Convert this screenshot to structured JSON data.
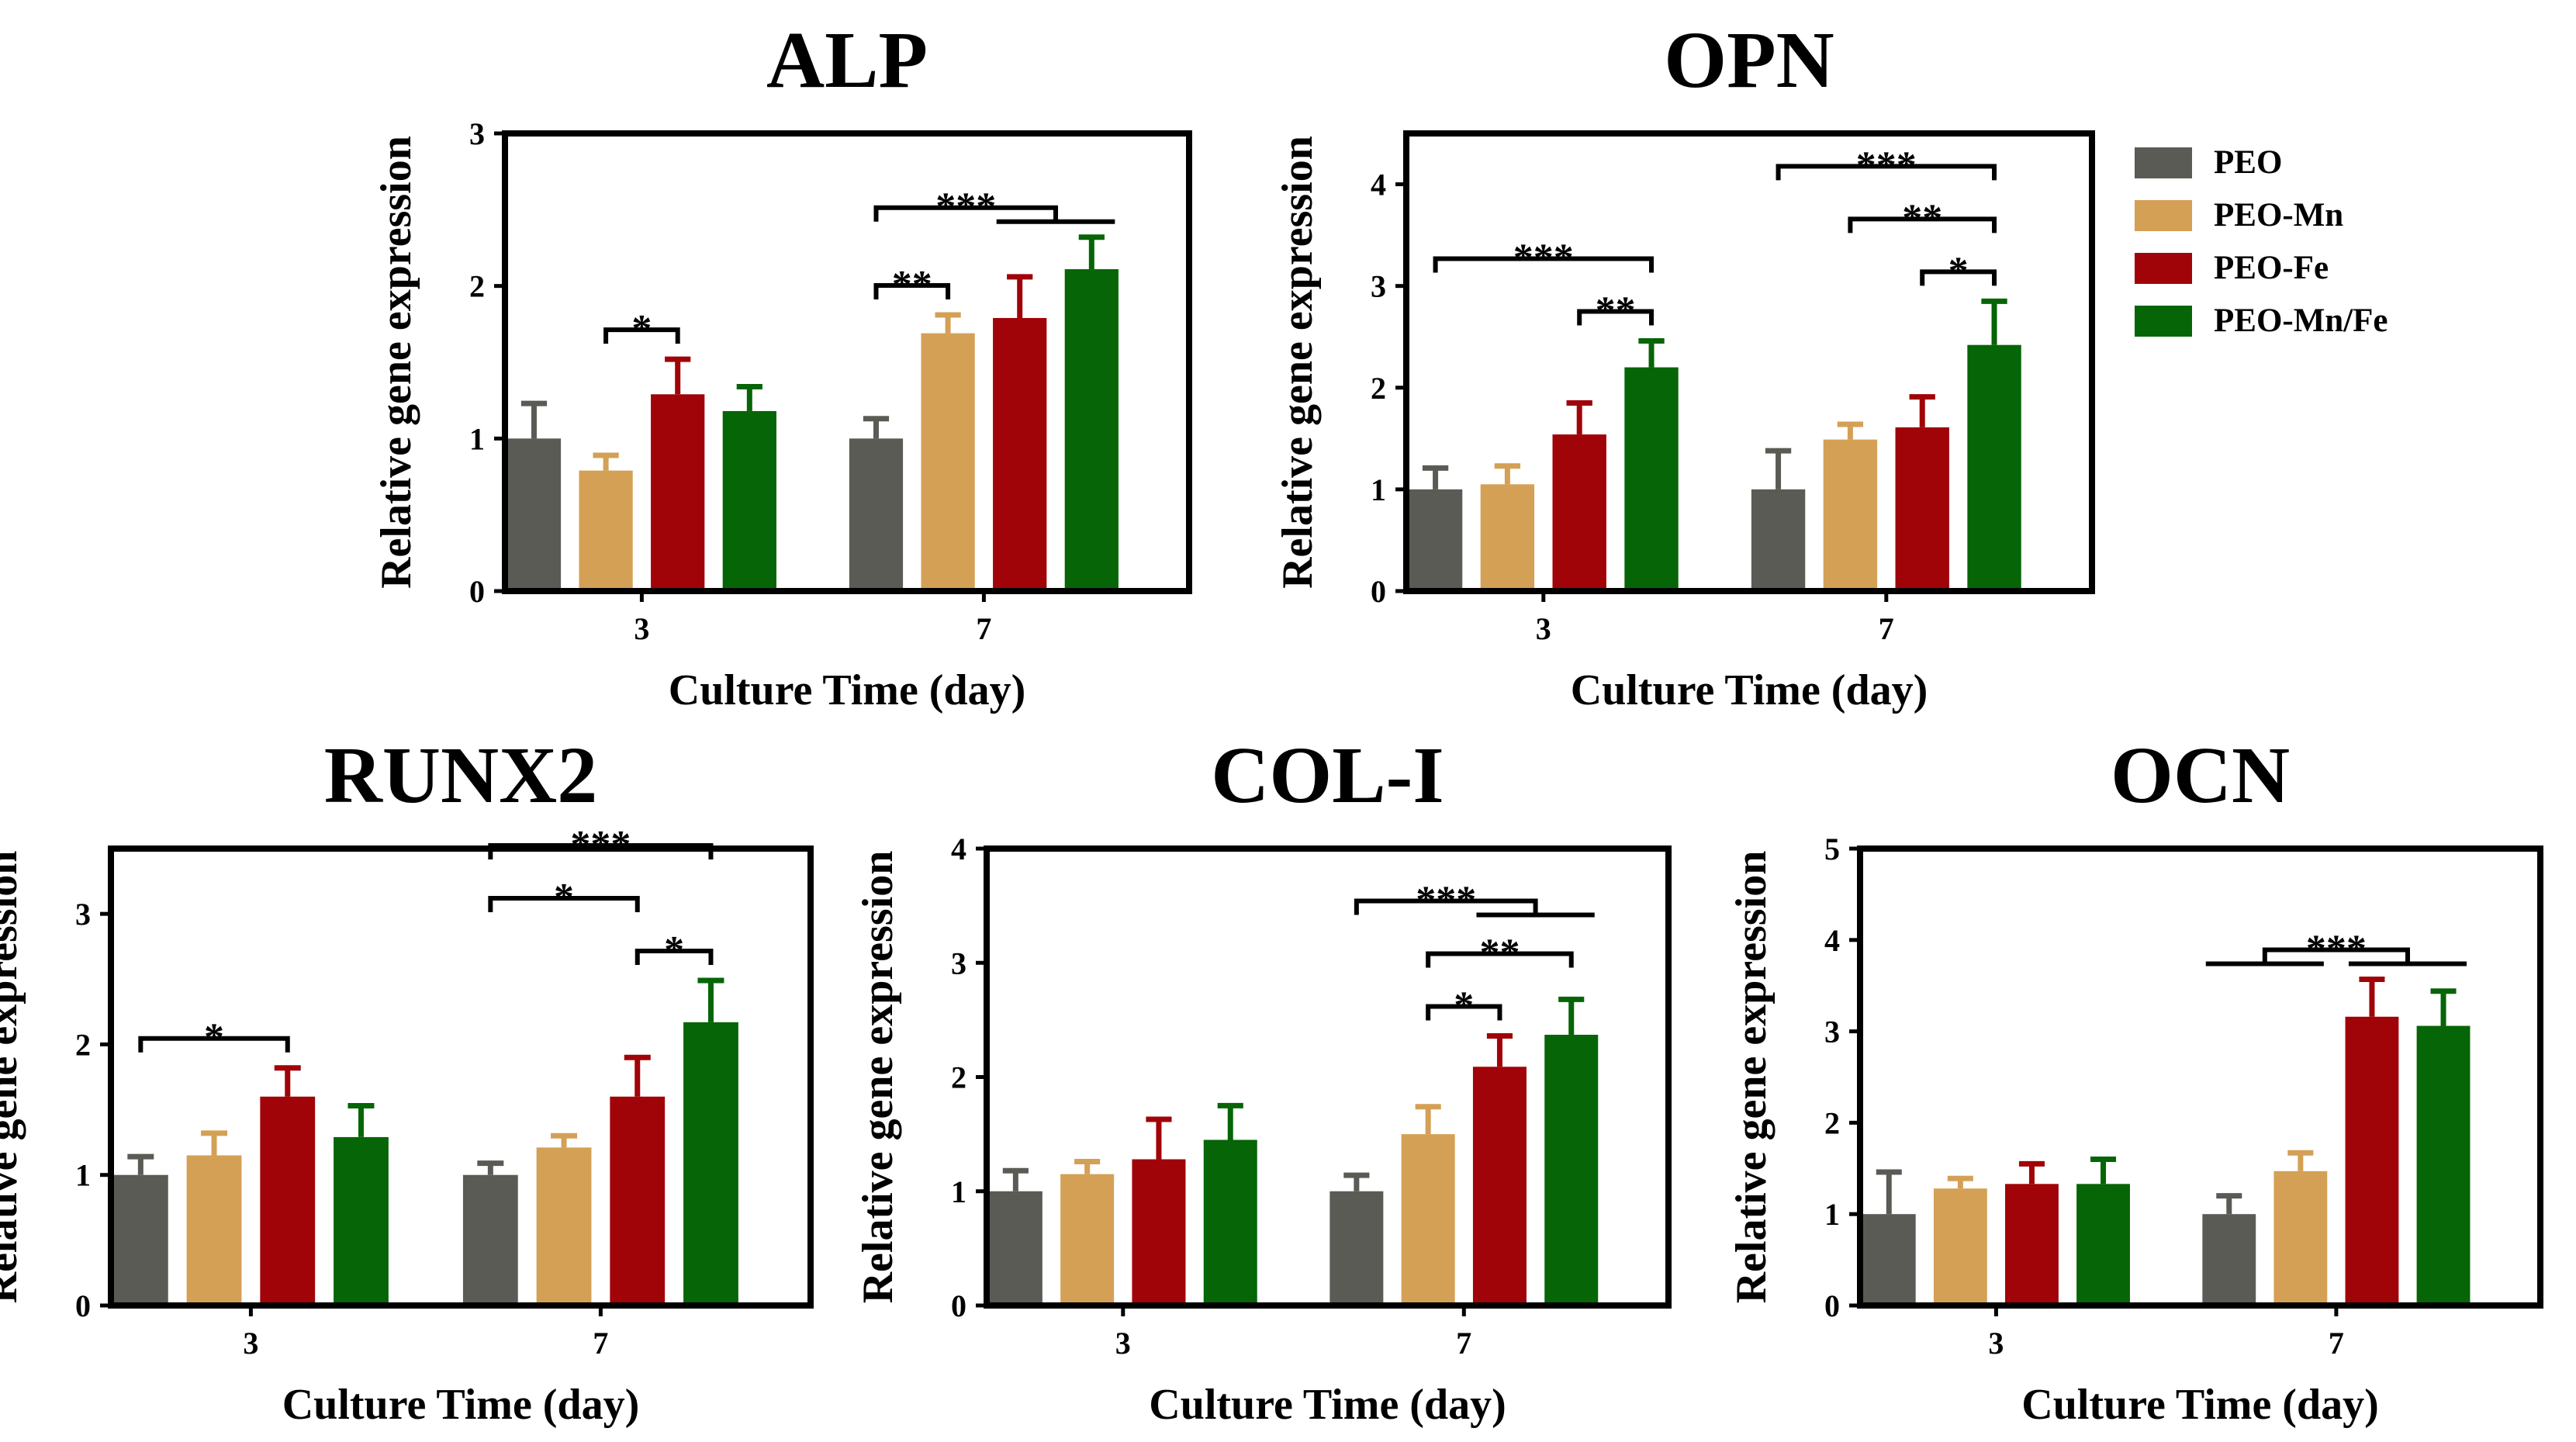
{
  "legend": {
    "items": [
      {
        "label": "PEO",
        "color": "#5a5b55"
      },
      {
        "label": "PEO-Mn",
        "color": "#d4a055"
      },
      {
        "label": "PEO-Fe",
        "color": "#a00308"
      },
      {
        "label": "PEO-Mn/Fe",
        "color": "#066506"
      }
    ]
  },
  "chart_data": [
    {
      "type": "bar",
      "title": "ALP",
      "xlabel": "Culture Time (day)",
      "ylabel": "Relative gene expression",
      "categories": [
        "3",
        "7"
      ],
      "ylim": [
        0,
        3
      ],
      "yticks": [
        0,
        1,
        2,
        3
      ],
      "series": [
        {
          "name": "PEO",
          "values": [
            1.0,
            1.0
          ],
          "errors": [
            0.23,
            0.13
          ]
        },
        {
          "name": "PEO-Mn",
          "values": [
            0.79,
            1.69
          ],
          "errors": [
            0.1,
            0.12
          ]
        },
        {
          "name": "PEO-Fe",
          "values": [
            1.29,
            1.79
          ],
          "errors": [
            0.23,
            0.27
          ]
        },
        {
          "name": "PEO-Mn/Fe",
          "values": [
            1.18,
            2.11
          ],
          "errors": [
            0.16,
            0.21
          ]
        }
      ],
      "significance": [
        {
          "category": "3",
          "from": 1,
          "to": 2,
          "label": "*"
        },
        {
          "category": "7",
          "from": 0,
          "to": 1,
          "label": "**"
        },
        {
          "category": "7",
          "from": 0,
          "to": 2,
          "to_end": 3,
          "label": "***"
        }
      ]
    },
    {
      "type": "bar",
      "title": "OPN",
      "xlabel": "Culture Time (day)",
      "ylabel": "Relative gene expression",
      "categories": [
        "3",
        "7"
      ],
      "ylim": [
        0,
        4.5
      ],
      "yticks": [
        0,
        1,
        2,
        3,
        4
      ],
      "series": [
        {
          "name": "PEO",
          "values": [
            1.0,
            1.0
          ],
          "errors": [
            0.21,
            0.38
          ]
        },
        {
          "name": "PEO-Mn",
          "values": [
            1.05,
            1.49
          ],
          "errors": [
            0.18,
            0.15
          ]
        },
        {
          "name": "PEO-Fe",
          "values": [
            1.54,
            1.61
          ],
          "errors": [
            0.31,
            0.3
          ]
        },
        {
          "name": "PEO-Mn/Fe",
          "values": [
            2.2,
            2.42
          ],
          "errors": [
            0.26,
            0.43
          ]
        }
      ],
      "significance": [
        {
          "category": "3",
          "from": 2,
          "to": 3,
          "label": "**"
        },
        {
          "category": "3",
          "from": 0,
          "to": 3,
          "label": "***"
        },
        {
          "category": "7",
          "from": 2,
          "to": 3,
          "label": "*"
        },
        {
          "category": "7",
          "from": 1,
          "to": 3,
          "label": "**"
        },
        {
          "category": "7",
          "from": 0,
          "to": 3,
          "label": "***"
        }
      ]
    },
    {
      "type": "bar",
      "title": "RUNX2",
      "xlabel": "Culture Time (day)",
      "ylabel": "Relative gene expression",
      "categories": [
        "3",
        "7"
      ],
      "ylim": [
        0,
        3.5
      ],
      "yticks": [
        0,
        1,
        2,
        3
      ],
      "series": [
        {
          "name": "PEO",
          "values": [
            1.0,
            1.0
          ],
          "errors": [
            0.14,
            0.09
          ]
        },
        {
          "name": "PEO-Mn",
          "values": [
            1.15,
            1.21
          ],
          "errors": [
            0.17,
            0.09
          ]
        },
        {
          "name": "PEO-Fe",
          "values": [
            1.6,
            1.6
          ],
          "errors": [
            0.22,
            0.3
          ]
        },
        {
          "name": "PEO-Mn/Fe",
          "values": [
            1.29,
            2.17
          ],
          "errors": [
            0.24,
            0.32
          ]
        }
      ],
      "significance": [
        {
          "category": "3",
          "from": 0,
          "to": 2,
          "label": "*"
        },
        {
          "category": "7",
          "from": 0,
          "to": 2,
          "label": "*"
        },
        {
          "category": "7",
          "from": 2,
          "to": 3,
          "label": "*"
        },
        {
          "category": "7",
          "from": 0,
          "to": 3,
          "label": "***"
        }
      ]
    },
    {
      "type": "bar",
      "title": "COL-I",
      "xlabel": "Culture Time (day)",
      "ylabel": "Relative gene expression",
      "categories": [
        "3",
        "7"
      ],
      "ylim": [
        0,
        4
      ],
      "yticks": [
        0,
        1,
        2,
        3,
        4
      ],
      "series": [
        {
          "name": "PEO",
          "values": [
            1.0,
            1.0
          ],
          "errors": [
            0.18,
            0.14
          ]
        },
        {
          "name": "PEO-Mn",
          "values": [
            1.15,
            1.5
          ],
          "errors": [
            0.11,
            0.24
          ]
        },
        {
          "name": "PEO-Fe",
          "values": [
            1.28,
            2.09
          ],
          "errors": [
            0.35,
            0.27
          ]
        },
        {
          "name": "PEO-Mn/Fe",
          "values": [
            1.45,
            2.37
          ],
          "errors": [
            0.3,
            0.31
          ]
        }
      ],
      "significance": [
        {
          "category": "7",
          "from": 1,
          "to": 2,
          "label": "*"
        },
        {
          "category": "7",
          "from": 1,
          "to": 3,
          "label": "**"
        },
        {
          "category": "7",
          "from": 0,
          "to": 2,
          "to_end": 3,
          "label": "***"
        }
      ]
    },
    {
      "type": "bar",
      "title": "OCN",
      "xlabel": "Culture Time (day)",
      "ylabel": "Relative gene expression",
      "categories": [
        "3",
        "7"
      ],
      "ylim": [
        0,
        5
      ],
      "yticks": [
        0,
        1,
        2,
        3,
        4,
        5
      ],
      "series": [
        {
          "name": "PEO",
          "values": [
            1.0,
            1.0
          ],
          "errors": [
            0.46,
            0.2
          ]
        },
        {
          "name": "PEO-Mn",
          "values": [
            1.28,
            1.47
          ],
          "errors": [
            0.11,
            0.2
          ]
        },
        {
          "name": "PEO-Fe",
          "values": [
            1.33,
            3.16
          ],
          "errors": [
            0.22,
            0.41
          ]
        },
        {
          "name": "PEO-Mn/Fe",
          "values": [
            1.33,
            3.06
          ],
          "errors": [
            0.27,
            0.38
          ]
        }
      ],
      "significance": [
        {
          "category": "7",
          "from": 0,
          "from_end": 1,
          "to": 2,
          "to_end": 3,
          "label": "***"
        }
      ]
    }
  ]
}
